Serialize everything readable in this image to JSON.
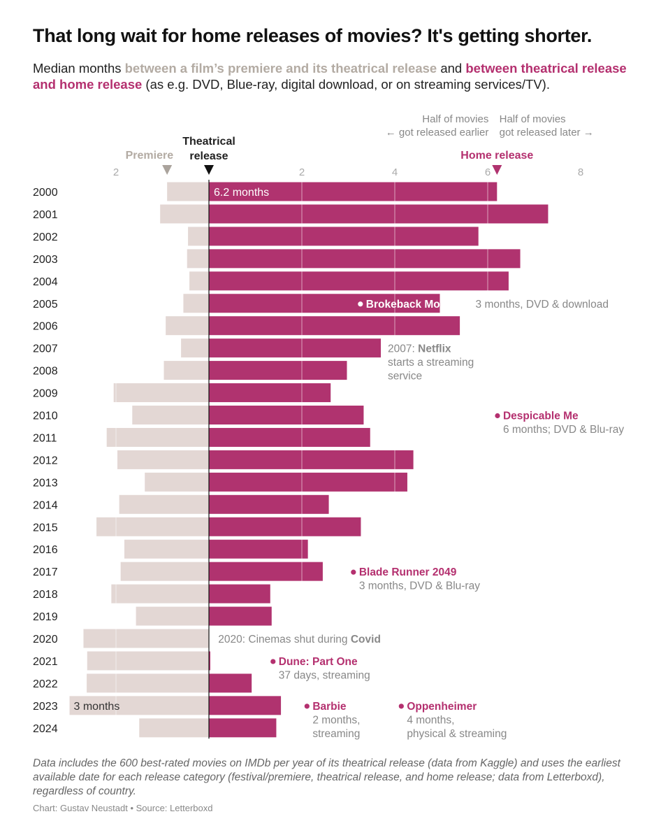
{
  "title": "That long wait for home releases of movies? It's getting shorter.",
  "subtitle": {
    "prefix": "Median months ",
    "premiere_phrase": "between a film’s premiere and its theatrical release",
    "connector": " and ",
    "home_phrase": "between theatrical release and home release",
    "suffix": " (as e.g. DVD, Blue-ray, digital download, or on streaming services/TV)."
  },
  "header": {
    "half_earlier_line1": "Half of movies",
    "half_earlier_line2": "← got released earlier",
    "half_later_line1": "Half of movies",
    "half_later_line2": "got released later →",
    "premiere_label": "Premiere",
    "theatrical_label_line1": "Theatrical",
    "theatrical_label_line2": "release",
    "home_label": "Home release"
  },
  "colors": {
    "premiere": "#e3d7d4",
    "home": "#b0336f",
    "premiere_text": "#b3aba3",
    "home_text": "#b4306f",
    "annotation_text": "#888888",
    "axis": "#111111"
  },
  "chart_data": {
    "type": "bar",
    "orientation": "horizontal-diverging",
    "categories": [
      "2000",
      "2001",
      "2002",
      "2003",
      "2004",
      "2005",
      "2006",
      "2007",
      "2008",
      "2009",
      "2010",
      "2011",
      "2012",
      "2013",
      "2014",
      "2015",
      "2016",
      "2017",
      "2018",
      "2019",
      "2020",
      "2021",
      "2022",
      "2023",
      "2024"
    ],
    "series": [
      {
        "name": "Premiere",
        "values": [
          0.9,
          1.05,
          0.45,
          0.47,
          0.42,
          0.55,
          0.93,
          0.6,
          0.97,
          2.05,
          1.65,
          2.2,
          1.97,
          1.38,
          1.93,
          2.42,
          1.82,
          1.9,
          2.1,
          1.57,
          2.7,
          2.62,
          2.63,
          3.0,
          1.5
        ]
      },
      {
        "name": "Home release",
        "values": [
          6.2,
          7.3,
          5.8,
          6.7,
          6.45,
          4.97,
          5.4,
          3.7,
          2.97,
          2.62,
          3.33,
          3.47,
          4.4,
          4.27,
          2.58,
          3.27,
          2.13,
          2.45,
          1.32,
          1.35,
          0.0,
          0.03,
          0.92,
          1.55,
          1.45
        ]
      }
    ],
    "x_ticks_left": [
      "2"
    ],
    "x_ticks_right": [
      "2",
      "4",
      "6",
      "8"
    ],
    "xlim": [
      -3.0,
      8.2
    ],
    "bar_value_labels": [
      {
        "category": "2000",
        "text": "6.2 months",
        "series": "Home release"
      },
      {
        "category": "2023",
        "text": "3 months",
        "series": "Premiere"
      }
    ],
    "grid": true
  },
  "annotations": [
    {
      "row": "2005",
      "x": 3.2,
      "title": "Brokeback Mountain",
      "detail": " 3 months, DVD & download",
      "inline": true,
      "dot": true,
      "title_color": "#ffffff"
    },
    {
      "row": "2007",
      "x": 3.85,
      "title": "Netflix",
      "prefix": "2007: ",
      "lines": [
        "starts a streaming",
        "service"
      ],
      "dot": false,
      "title_color": "#888888"
    },
    {
      "row": "2010",
      "x": 6.15,
      "title": "Despicable Me",
      "lines": [
        "6 months; DVD & Blu-ray"
      ],
      "dot": true,
      "title_color": "#b4306f"
    },
    {
      "row": "2017",
      "x": 3.05,
      "title": "Blade Runner 2049",
      "lines": [
        "3 months, DVD & Blu-ray"
      ],
      "dot": true,
      "title_color": "#b4306f"
    },
    {
      "row": "2020",
      "x": 0.2,
      "title": "Covid",
      "prefix": "2020: Cinemas shut during ",
      "lines": [],
      "dot": false,
      "title_color": "#888888"
    },
    {
      "row": "2021",
      "x": 1.32,
      "title": "Dune: Part One",
      "lines": [
        "37 days, streaming"
      ],
      "dot": true,
      "title_color": "#b4306f"
    },
    {
      "row": "2023",
      "x": 2.05,
      "title": "Barbie",
      "lines": [
        "2 months,",
        "streaming"
      ],
      "dot": true,
      "title_color": "#b4306f"
    },
    {
      "row": "2023",
      "x": 4.08,
      "title": "Oppenheimer",
      "lines": [
        "4 months,",
        "physical & streaming"
      ],
      "dot": true,
      "title_color": "#b4306f"
    }
  ],
  "footnote": "Data includes the 600 best-rated movies on IMDb per year of its theatrical release (data from Kaggle) and uses the earliest available date for each release category (festival/premiere, theatrical release, and home release; data from Letterboxd), regardless of country.",
  "credit": "Chart: Gustav Neustadt • Source: Letterboxd"
}
